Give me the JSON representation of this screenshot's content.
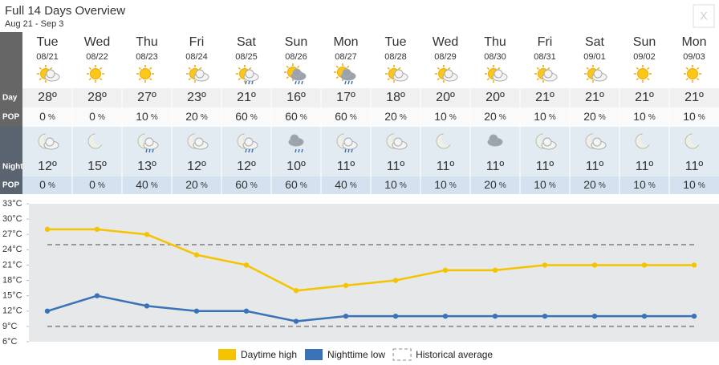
{
  "header": {
    "title": "Full 14 Days Overview",
    "subtitle": "Aug 21 - Sep 3",
    "close": "X"
  },
  "row_labels": {
    "day": "Day",
    "pop": "POP",
    "night": "Night",
    "night_pop": "POP"
  },
  "degree": "º",
  "pop_unit": "%",
  "days": [
    {
      "name": "Tue",
      "date": "08/21",
      "day_temp": 28,
      "day_pop": 0,
      "night_temp": 12,
      "night_pop": 0
    },
    {
      "name": "Wed",
      "date": "08/22",
      "day_temp": 28,
      "day_pop": 0,
      "night_temp": 15,
      "night_pop": 0
    },
    {
      "name": "Thu",
      "date": "08/23",
      "day_temp": 27,
      "day_pop": 10,
      "night_temp": 13,
      "night_pop": 40
    },
    {
      "name": "Fri",
      "date": "08/24",
      "day_temp": 23,
      "day_pop": 20,
      "night_temp": 12,
      "night_pop": 20
    },
    {
      "name": "Sat",
      "date": "08/25",
      "day_temp": 21,
      "day_pop": 60,
      "night_temp": 12,
      "night_pop": 60
    },
    {
      "name": "Sun",
      "date": "08/26",
      "day_temp": 16,
      "day_pop": 60,
      "night_temp": 10,
      "night_pop": 60
    },
    {
      "name": "Mon",
      "date": "08/27",
      "day_temp": 17,
      "day_pop": 60,
      "night_temp": 11,
      "night_pop": 40
    },
    {
      "name": "Tue",
      "date": "08/28",
      "day_temp": 18,
      "day_pop": 20,
      "night_temp": 11,
      "night_pop": 10
    },
    {
      "name": "Wed",
      "date": "08/29",
      "day_temp": 20,
      "day_pop": 10,
      "night_temp": 11,
      "night_pop": 10
    },
    {
      "name": "Thu",
      "date": "08/30",
      "day_temp": 20,
      "day_pop": 20,
      "night_temp": 11,
      "night_pop": 20
    },
    {
      "name": "Fri",
      "date": "08/31",
      "day_temp": 21,
      "day_pop": 10,
      "night_temp": 11,
      "night_pop": 10
    },
    {
      "name": "Sat",
      "date": "09/01",
      "day_temp": 21,
      "day_pop": 20,
      "night_temp": 11,
      "night_pop": 20
    },
    {
      "name": "Sun",
      "date": "09/02",
      "day_temp": 21,
      "day_pop": 10,
      "night_temp": 11,
      "night_pop": 10
    },
    {
      "name": "Mon",
      "date": "09/03",
      "day_temp": 21,
      "day_pop": 10,
      "night_temp": 11,
      "night_pop": 10
    }
  ],
  "chart_data": {
    "type": "line",
    "ylim": [
      6,
      33
    ],
    "yticks": [
      {
        "value": 33,
        "label": "33°C"
      },
      {
        "value": 30,
        "label": "30°C"
      },
      {
        "value": 27,
        "label": "27°C"
      },
      {
        "value": 24,
        "label": "24°C"
      },
      {
        "value": 21,
        "label": "21°C"
      },
      {
        "value": 18,
        "label": "18°C"
      },
      {
        "value": 15,
        "label": "15°C"
      },
      {
        "value": 12,
        "label": "12°C"
      },
      {
        "value": 9,
        "label": "9°C"
      },
      {
        "value": 6,
        "label": "6°C"
      }
    ],
    "series": [
      {
        "name": "Daytime high",
        "color": "#f5c400",
        "values": [
          28,
          28,
          27,
          23,
          21,
          16,
          17,
          18,
          20,
          20,
          21,
          21,
          21,
          21
        ]
      },
      {
        "name": "Nighttime low",
        "color": "#3a72b8",
        "values": [
          12,
          15,
          13,
          12,
          12,
          10,
          11,
          11,
          11,
          11,
          11,
          11,
          11,
          11
        ]
      }
    ],
    "historical_average": {
      "name": "Historical average",
      "color": "#999999",
      "high": 25,
      "low": 9
    }
  }
}
